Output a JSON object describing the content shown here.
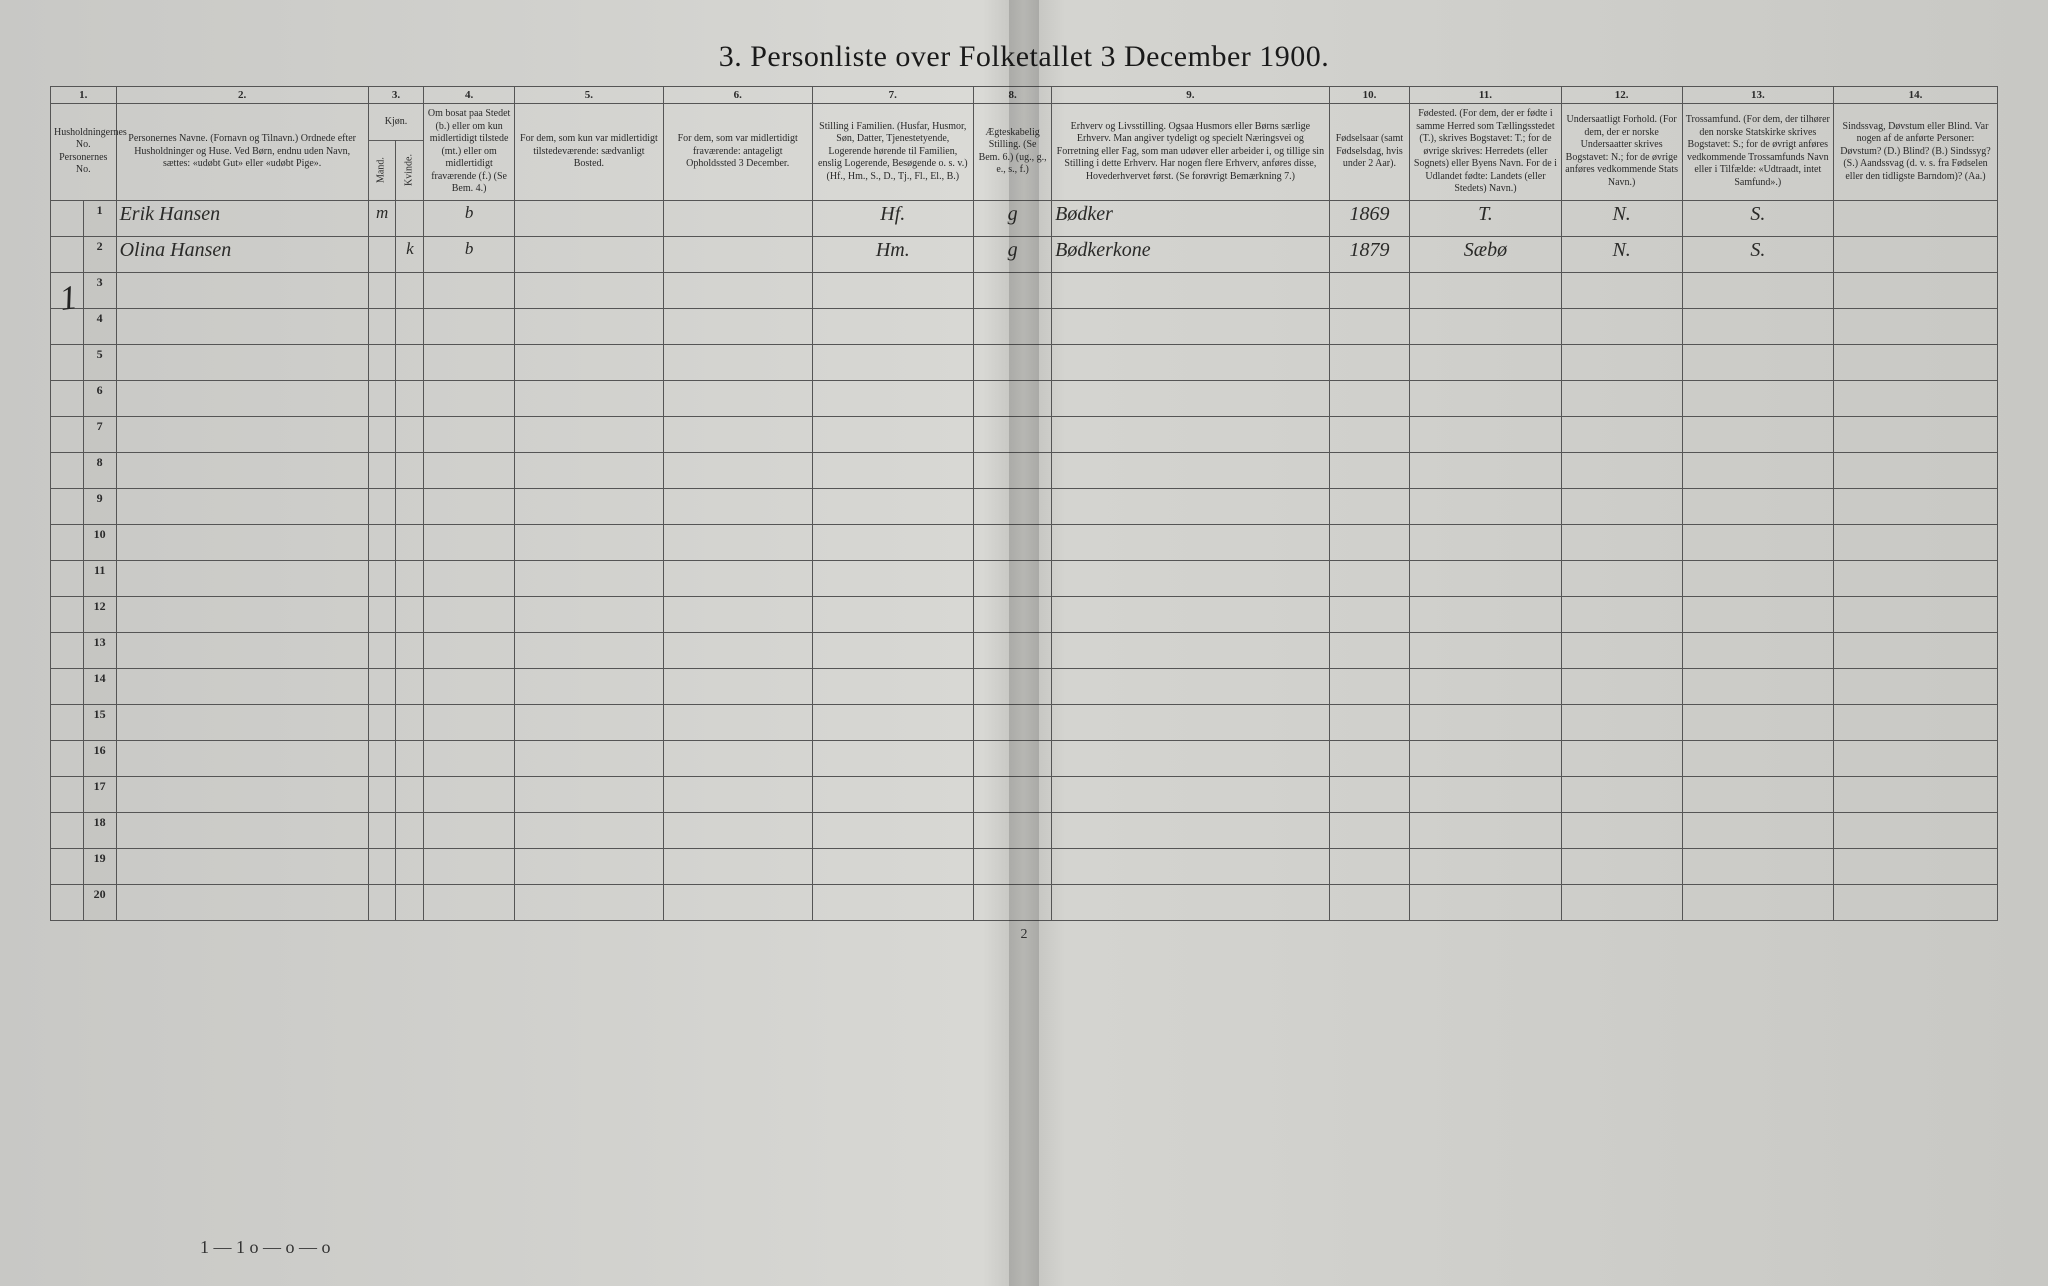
{
  "title": "3. Personliste over Folketallet 3 December 1900.",
  "page_number": "2",
  "household_mark": "1",
  "tallies": "1 — 1   o —   o —   o",
  "columns": {
    "nums": [
      "1.",
      "2.",
      "3.",
      "4.",
      "5.",
      "6.",
      "7.",
      "8.",
      "9.",
      "10.",
      "11.",
      "12.",
      "13.",
      "14."
    ],
    "c1": "Husholdningernes No.\nPersonernes No.",
    "c2": "Personernes Navne.\n(Fornavn og Tilnavn.)\nOrdnede efter Husholdninger og Huse.\nVed Børn, endnu uden Navn, sættes: «udøbt Gut» eller «udøbt Pige».",
    "c3": "Kjøn.",
    "c3sub": [
      "Mand.",
      "Kvinde."
    ],
    "c4": "Om bosat paa Stedet (b.) eller om kun midlertidigt tilstede (mt.) eller om midlertidigt fraværende (f.)\n(Se Bem. 4.)",
    "c5": "For dem, som kun var midlertidigt tilstedeværende:\nsædvanligt Bosted.",
    "c6": "For dem, som var midlertidigt fraværende:\nantageligt Opholdssted 3 December.",
    "c7": "Stilling i Familien.\n(Husfar, Husmor, Søn, Datter, Tjenestetyende, Logerende hørende til Familien, enslig Logerende, Besøgende o. s. v.)\n(Hf., Hm., S., D., Tj., Fl., El., B.)",
    "c8": "Ægteskabelig Stilling.\n(Se Bem. 6.)\n(ug., g., e., s., f.)",
    "c9": "Erhverv og Livsstilling.\nOgsaa Husmors eller Børns særlige Erhverv.\nMan angiver tydeligt og specielt Næringsvei og Forretning eller Fag, som man udøver eller arbeider i, og tillige sin Stilling i dette Erhverv.\nHar nogen flere Erhverv, anføres disse, Hovederhvervet først.\n(Se forøvrigt Bemærkning 7.)",
    "c10": "Fødselsaar\n(samt Fødselsdag, hvis under 2 Aar).",
    "c11": "Fødested.\n(For dem, der er fødte i samme Herred som Tællingsstedet (T.), skrives Bogstavet: T.; for de øvrige skrives: Herredets (eller Sognets) eller Byens Navn.\nFor de i Udlandet fødte: Landets (eller Stedets) Navn.)",
    "c12": "Undersaatligt Forhold.\n(For dem, der er norske Undersaatter skrives Bogstavet: N.; for de øvrige anføres vedkommende Stats Navn.)",
    "c13": "Trossamfund.\n(For dem, der tilhører den norske Statskirke skrives Bogstavet: S.; for de øvrigt anføres vedkommende Trossamfunds Navn eller i Tilfælde: «Udtraadt, intet Samfund».)",
    "c14": "Sindssvag, Døvstum eller Blind.\nVar nogen af de anførte Personer:\nDøvstum? (D.)\nBlind? (B.)\nSindssyg? (S.)\nAandssvag (d. v. s. fra Fødselen eller den tidligste Barndom)? (Aa.)"
  },
  "row_labels": [
    "1",
    "2",
    "3",
    "4",
    "5",
    "6",
    "7",
    "8",
    "9",
    "10",
    "11",
    "12",
    "13",
    "14",
    "15",
    "16",
    "17",
    "18",
    "19",
    "20"
  ],
  "entries": [
    {
      "name": "Erik Hansen",
      "sex_m": "m",
      "sex_k": "",
      "res": "b",
      "c5": "",
      "c6": "",
      "famstill": "Hf.",
      "aegte": "g",
      "erhverv": "Bødker",
      "faar": "1869",
      "fsted": "T.",
      "unders": "N.",
      "tros": "S.",
      "c14": ""
    },
    {
      "name": "Olina Hansen",
      "sex_m": "",
      "sex_k": "k",
      "res": "b",
      "c5": "",
      "c6": "",
      "famstill": "Hm.",
      "aegte": "g",
      "erhverv": "Bødkerkone",
      "faar": "1879",
      "fsted": "Sæbø",
      "unders": "N.",
      "tros": "S.",
      "c14": ""
    }
  ],
  "widths": {
    "c1a": 26,
    "c1b": 26,
    "c2": 200,
    "c3a": 22,
    "c3b": 22,
    "c4": 72,
    "c5": 118,
    "c6": 118,
    "c7": 128,
    "c8": 62,
    "c9": 220,
    "c10": 64,
    "c11": 120,
    "c12": 96,
    "c13": 120,
    "c14": 130
  }
}
